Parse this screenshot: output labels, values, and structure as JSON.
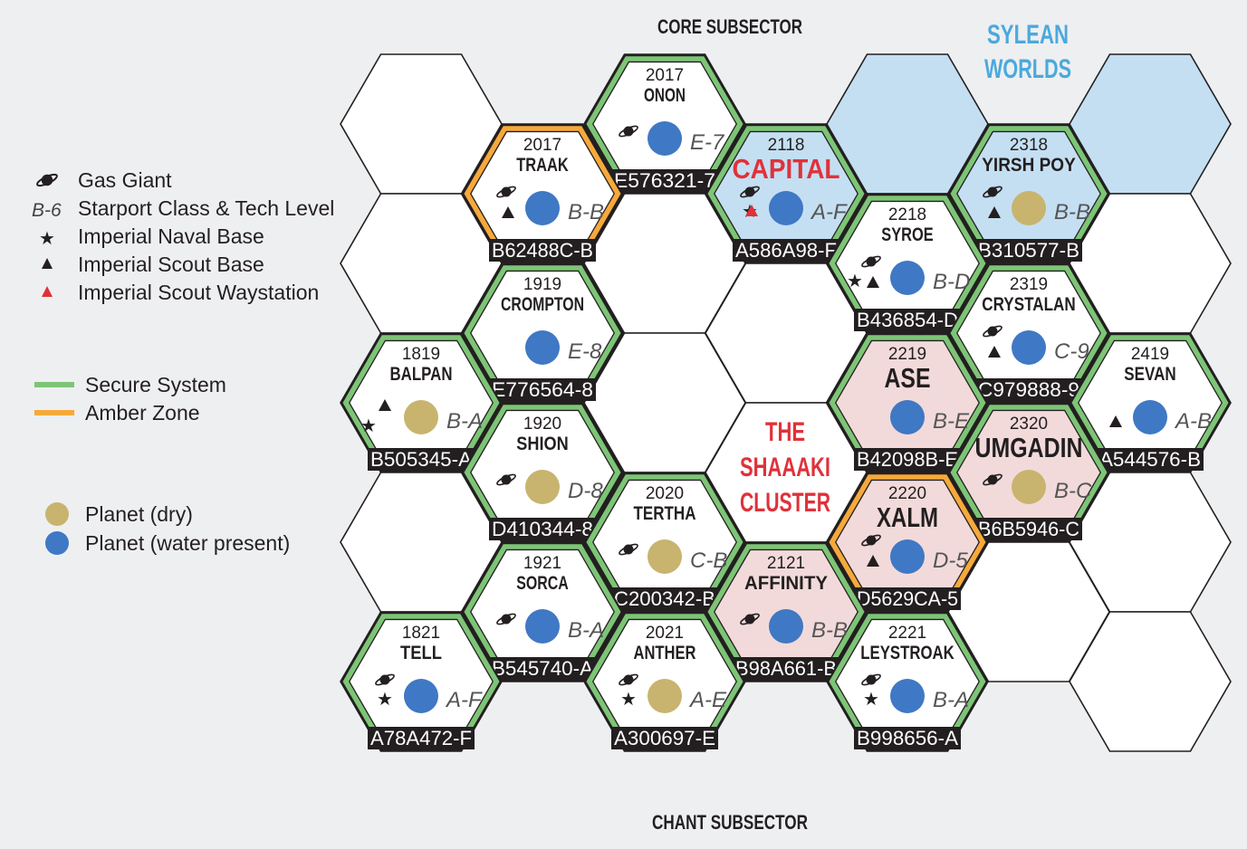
{
  "labels": {
    "core_subsector": "CORE SUBSECTOR",
    "chant_subsector": "CHANT SUBSECTOR",
    "sylean_line1": "SYLEAN",
    "sylean_line2": "WORLDS",
    "cluster_line1": "THE",
    "cluster_line2": "SHAAAKI",
    "cluster_line3": "CLUSTER"
  },
  "legend": {
    "gas_giant": "Gas Giant",
    "starport_sample": "B-6",
    "starport": "Starport Class & Tech Level",
    "naval_base": "Imperial Naval Base",
    "scout_base": "Imperial Scout Base",
    "waystation": "Imperial Scout Waystation",
    "secure": "Secure System",
    "amber": "Amber Zone",
    "planet_dry": "Planet (dry)",
    "planet_water": "Planet (water present)"
  },
  "colors": {
    "secure": "#7dc576",
    "amber": "#f6a93b",
    "dry_planet": "#c8b46e",
    "water_planet": "#3f78c4",
    "sylean_fill": "#c4dff2",
    "sylean_text": "#4ba9dd",
    "pink_fill": "#f2dada",
    "red_text": "#e0313a",
    "background": "#eeeff1"
  },
  "systems": [
    {
      "hex": "2017",
      "name": "ONON",
      "code": "E-7",
      "uwp": "E576321-7",
      "border": "secure",
      "fill": "white",
      "water": true,
      "gas": true,
      "naval": false,
      "scout": false,
      "waystation": false
    },
    {
      "hex": "2017",
      "name": "TRAAK",
      "code": "B-B",
      "uwp": "B62488C-B",
      "border": "amber",
      "fill": "white",
      "water": true,
      "gas": true,
      "naval": false,
      "scout": true,
      "waystation": false
    },
    {
      "hex": "2118",
      "name": "CAPITAL",
      "code": "A-F",
      "uwp": "A586A98-F",
      "border": "secure",
      "fill": "sylean",
      "water": true,
      "gas": true,
      "naval": true,
      "scout": false,
      "waystation": true,
      "big": true,
      "red": true
    },
    {
      "hex": "2318",
      "name": "YIRSH POY",
      "code": "B-B",
      "uwp": "B310577-B",
      "border": "secure",
      "fill": "sylean",
      "water": false,
      "gas": true,
      "naval": false,
      "scout": true,
      "waystation": false
    },
    {
      "hex": "2218",
      "name": "SYROE",
      "code": "B-D",
      "uwp": "B436854-D",
      "border": "secure",
      "fill": "white",
      "water": true,
      "gas": true,
      "naval": true,
      "scout": true,
      "waystation": false
    },
    {
      "hex": "1919",
      "name": "CROMPTON",
      "code": "E-8",
      "uwp": "E776564-8",
      "border": "secure",
      "fill": "white",
      "water": true,
      "gas": false,
      "naval": false,
      "scout": false,
      "waystation": false
    },
    {
      "hex": "2319",
      "name": "CRYSTALAN",
      "code": "C-9",
      "uwp": "C979888-9",
      "border": "secure",
      "fill": "white",
      "water": true,
      "gas": true,
      "naval": false,
      "scout": true,
      "waystation": false
    },
    {
      "hex": "1819",
      "name": "BALPAN",
      "code": "B-A",
      "uwp": "B505345-A",
      "border": "secure",
      "fill": "white",
      "water": false,
      "gas": false,
      "naval": true,
      "scout": true,
      "waystation": false
    },
    {
      "hex": "2219",
      "name": "ASE",
      "code": "B-E",
      "uwp": "B42098B-E",
      "border": "secure",
      "fill": "pink",
      "water": true,
      "gas": false,
      "naval": false,
      "scout": false,
      "waystation": false,
      "big": true
    },
    {
      "hex": "2419",
      "name": "SEVAN",
      "code": "A-B",
      "uwp": "A544576-B",
      "border": "secure",
      "fill": "white",
      "water": true,
      "gas": false,
      "naval": false,
      "scout": true,
      "waystation": false
    },
    {
      "hex": "1920",
      "name": "SHION",
      "code": "D-8",
      "uwp": "D410344-8",
      "border": "secure",
      "fill": "white",
      "water": false,
      "gas": true,
      "naval": false,
      "scout": false,
      "waystation": false
    },
    {
      "hex": "2320",
      "name": "UMGADIN",
      "code": "B-C",
      "uwp": "B6B5946-C",
      "border": "secure",
      "fill": "pink",
      "water": false,
      "gas": true,
      "naval": false,
      "scout": false,
      "waystation": false,
      "big": true
    },
    {
      "hex": "2020",
      "name": "TERTHA",
      "code": "C-B",
      "uwp": "C200342-B",
      "border": "secure",
      "fill": "white",
      "water": false,
      "gas": true,
      "naval": false,
      "scout": false,
      "waystation": false
    },
    {
      "hex": "2220",
      "name": "XALM",
      "code": "D-5",
      "uwp": "D5629CA-5",
      "border": "amber",
      "fill": "pink",
      "water": true,
      "gas": true,
      "naval": false,
      "scout": true,
      "waystation": false,
      "big": true
    },
    {
      "hex": "1921",
      "name": "SORCA",
      "code": "B-A",
      "uwp": "B545740-A",
      "border": "secure",
      "fill": "white",
      "water": true,
      "gas": true,
      "naval": false,
      "scout": false,
      "waystation": false
    },
    {
      "hex": "2121",
      "name": "AFFINITY",
      "code": "B-B",
      "uwp": "B98A661-B",
      "border": "secure",
      "fill": "pink",
      "water": true,
      "gas": true,
      "naval": false,
      "scout": false,
      "waystation": false
    },
    {
      "hex": "1821",
      "name": "TELL",
      "code": "A-F",
      "uwp": "A78A472-F",
      "border": "secure",
      "fill": "white",
      "water": true,
      "gas": true,
      "naval": true,
      "scout": false,
      "waystation": false
    },
    {
      "hex": "2021",
      "name": "ANTHER",
      "code": "A-E",
      "uwp": "A300697-E",
      "border": "secure",
      "fill": "white",
      "water": false,
      "gas": true,
      "naval": true,
      "scout": false,
      "waystation": false
    },
    {
      "hex": "2221",
      "name": "LEYSTROAK",
      "code": "B-A",
      "uwp": "B998656-A",
      "border": "secure",
      "fill": "white",
      "water": true,
      "gas": true,
      "naval": true,
      "scout": false,
      "waystation": false
    }
  ]
}
